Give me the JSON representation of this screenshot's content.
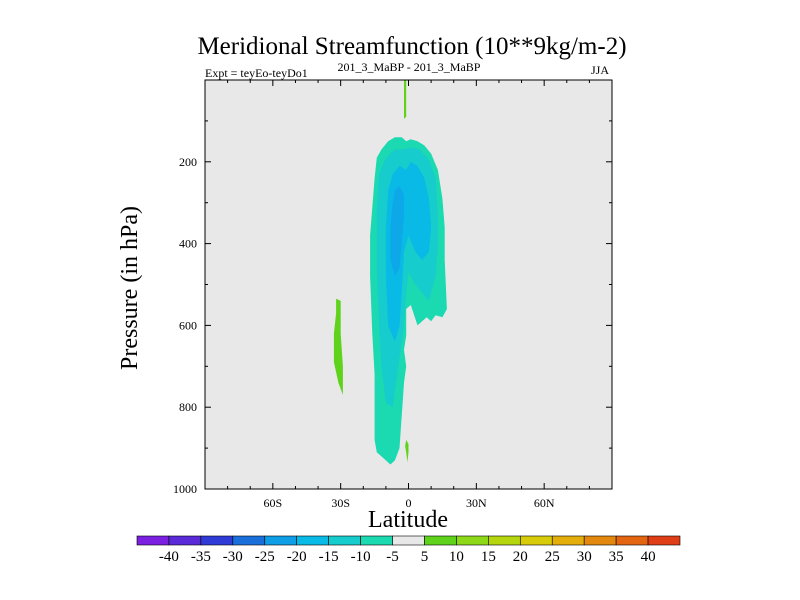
{
  "chart_data": {
    "type": "contour",
    "title": "Meridional Streamfunction (10**9kg/m-2)",
    "subtitle_left": "Expt = teyEo-teyDo1",
    "subtitle_center": "201_3_MaBP - 201_3_MaBP",
    "subtitle_right": "JJA",
    "xlabel": "Latitude",
    "ylabel": "Pressure (in hPa)",
    "xlim": [
      -90,
      90
    ],
    "ylim": [
      1000,
      0
    ],
    "x_ticks": [
      {
        "value": -60,
        "label": "60S"
      },
      {
        "value": -30,
        "label": "30S"
      },
      {
        "value": 0,
        "label": "0"
      },
      {
        "value": 30,
        "label": "30N"
      },
      {
        "value": 60,
        "label": "60N"
      }
    ],
    "y_ticks": [
      {
        "value": 200,
        "label": "200"
      },
      {
        "value": 400,
        "label": "400"
      },
      {
        "value": 600,
        "label": "600"
      },
      {
        "value": 800,
        "label": "800"
      },
      {
        "value": 1000,
        "label": "1000"
      }
    ],
    "colorbar": {
      "labels": [
        "-40",
        "-35",
        "-30",
        "-25",
        "-20",
        "-15",
        "-10",
        "-5",
        "5",
        "10",
        "15",
        "20",
        "25",
        "30",
        "35",
        "40"
      ],
      "colors": [
        "#7b1fe0",
        "#5a2ad8",
        "#2f3bd6",
        "#1a6fdb",
        "#0d9ee6",
        "#09b9e6",
        "#17cccc",
        "#1bd9b0",
        "#e8e8e8",
        "#5fd31c",
        "#8ed81a",
        "#b5d60f",
        "#d8cc0a",
        "#e3ae0c",
        "#e3880f",
        "#e36512",
        "#e03e17"
      ]
    },
    "background_color": "#e8e8e8",
    "regions": [
      {
        "name": "negative-cell-outer",
        "level_range": "-10 to -5",
        "color": "#1bd9b0",
        "polygon": [
          [
            -9,
            150
          ],
          [
            -6,
            140
          ],
          [
            -3,
            140
          ],
          [
            -1,
            150
          ],
          [
            1,
            145
          ],
          [
            4,
            150
          ],
          [
            7,
            160
          ],
          [
            10,
            180
          ],
          [
            13,
            220
          ],
          [
            15,
            290
          ],
          [
            16,
            360
          ],
          [
            16,
            440
          ],
          [
            17,
            560
          ],
          [
            15,
            580
          ],
          [
            12,
            575
          ],
          [
            10,
            590
          ],
          [
            8,
            580
          ],
          [
            6,
            590
          ],
          [
            4,
            600
          ],
          [
            1,
            550
          ],
          [
            -1,
            560
          ],
          [
            -1,
            625
          ],
          [
            -2,
            660
          ],
          [
            -1,
            700
          ],
          [
            -2,
            740
          ],
          [
            -4,
            900
          ],
          [
            -6,
            930
          ],
          [
            -8,
            940
          ],
          [
            -10,
            930
          ],
          [
            -14,
            910
          ],
          [
            -15,
            880
          ],
          [
            -15,
            790
          ],
          [
            -15,
            720
          ],
          [
            -16,
            620
          ],
          [
            -17,
            480
          ],
          [
            -17,
            380
          ],
          [
            -15,
            240
          ],
          [
            -14,
            190
          ],
          [
            -12,
            170
          ]
        ]
      },
      {
        "name": "negative-cell-inner",
        "level_range": "-15 to -10",
        "color": "#17cccc",
        "polygon": [
          [
            -10,
            190
          ],
          [
            -6,
            170
          ],
          [
            -2,
            170
          ],
          [
            1,
            165
          ],
          [
            5,
            170
          ],
          [
            9,
            195
          ],
          [
            12,
            240
          ],
          [
            13,
            330
          ],
          [
            13,
            410
          ],
          [
            12,
            480
          ],
          [
            9,
            540
          ],
          [
            6,
            520
          ],
          [
            3,
            500
          ],
          [
            0,
            470
          ],
          [
            -1,
            520
          ],
          [
            -2,
            600
          ],
          [
            -3,
            640
          ],
          [
            -5,
            720
          ],
          [
            -7,
            800
          ],
          [
            -10,
            790
          ],
          [
            -12,
            700
          ],
          [
            -13,
            600
          ],
          [
            -14,
            460
          ],
          [
            -14,
            320
          ],
          [
            -13,
            230
          ]
        ]
      },
      {
        "name": "negative-cell-core",
        "level_range": "-20 to -15",
        "color": "#09b9e6",
        "polygon": [
          [
            -7,
            230
          ],
          [
            -4,
            210
          ],
          [
            -1,
            220
          ],
          [
            1,
            200
          ],
          [
            4,
            210
          ],
          [
            7,
            240
          ],
          [
            9,
            290
          ],
          [
            10,
            360
          ],
          [
            9,
            420
          ],
          [
            6,
            440
          ],
          [
            3,
            420
          ],
          [
            0,
            380
          ],
          [
            -2,
            420
          ],
          [
            -3,
            520
          ],
          [
            -4,
            600
          ],
          [
            -6,
            640
          ],
          [
            -9,
            600
          ],
          [
            -10,
            480
          ],
          [
            -10,
            360
          ],
          [
            -9,
            270
          ]
        ]
      },
      {
        "name": "negative-cell-center",
        "level_range": "-25 to -20",
        "color": "#0da8e8",
        "polygon": [
          [
            -6,
            270
          ],
          [
            -4,
            260
          ],
          [
            -2,
            280
          ],
          [
            -2,
            330
          ],
          [
            -3,
            400
          ],
          [
            -4,
            460
          ],
          [
            -6,
            480
          ],
          [
            -8,
            440
          ],
          [
            -8,
            360
          ],
          [
            -7,
            300
          ]
        ]
      },
      {
        "name": "positive-top-patch",
        "level_range": "5 to 10",
        "color": "#5fd31c",
        "polygon": [
          [
            -2,
            0
          ],
          [
            -1,
            0
          ],
          [
            -1,
            90
          ],
          [
            -2,
            95
          ]
        ]
      },
      {
        "name": "positive-left-patch",
        "level_range": "5 to 10",
        "color": "#5fd31c",
        "polygon": [
          [
            -32,
            535
          ],
          [
            -30,
            540
          ],
          [
            -30,
            620
          ],
          [
            -29,
            700
          ],
          [
            -29,
            770
          ],
          [
            -31,
            740
          ],
          [
            -33,
            690
          ],
          [
            -33,
            620
          ],
          [
            -32,
            570
          ]
        ]
      },
      {
        "name": "positive-bottom-patch",
        "level_range": "5 to 10",
        "color": "#5fd31c",
        "polygon": [
          [
            -1,
            880
          ],
          [
            0,
            890
          ],
          [
            0,
            910
          ],
          [
            -0.5,
            935
          ],
          [
            -1,
            910
          ],
          [
            -1.5,
            895
          ]
        ]
      }
    ]
  }
}
